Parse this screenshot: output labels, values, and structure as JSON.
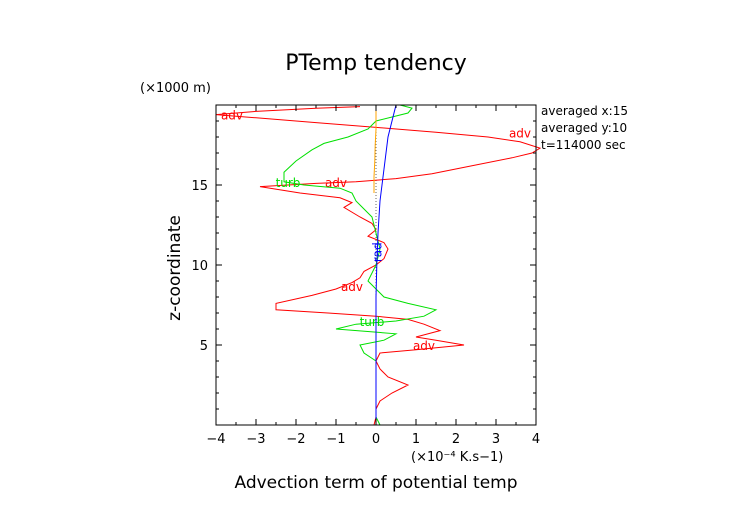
{
  "chart_data": {
    "type": "line",
    "title": "PTemp tendency",
    "xlabel": "Advection term of potential temp",
    "ylabel": "z-coordinate",
    "y_unit": "(×1000 m)",
    "x_unit": "(×10⁻⁴ K.s−1)",
    "xlim": [
      -4,
      4
    ],
    "ylim": [
      0,
      20
    ],
    "x_ticks": [
      -4,
      -3,
      -2,
      -1,
      0,
      1,
      2,
      3,
      4
    ],
    "y_ticks": [
      5,
      10,
      15
    ],
    "grid": false,
    "info_text": [
      "averaged  x:15",
      "averaged  y:10",
      "t=114000 sec"
    ],
    "series": [
      {
        "name": "adv",
        "color": "#ff0000",
        "labels": [
          [
            -3.6,
            19.3
          ],
          [
            3.6,
            18.2
          ],
          [
            -1.0,
            15.1
          ],
          [
            -0.6,
            8.6
          ],
          [
            1.2,
            4.9
          ]
        ],
        "points": [
          [
            -0.05,
            0.0
          ],
          [
            0.0,
            0.5
          ],
          [
            0.0,
            1.0
          ],
          [
            0.1,
            1.5
          ],
          [
            0.4,
            2.0
          ],
          [
            0.8,
            2.5
          ],
          [
            0.3,
            3.0
          ],
          [
            0.1,
            3.5
          ],
          [
            0.0,
            4.0
          ],
          [
            0.1,
            4.5
          ],
          [
            1.0,
            4.7
          ],
          [
            2.2,
            5.0
          ],
          [
            1.5,
            5.3
          ],
          [
            1.0,
            5.5
          ],
          [
            1.6,
            5.9
          ],
          [
            1.2,
            6.3
          ],
          [
            0.8,
            6.6
          ],
          [
            0.0,
            6.8
          ],
          [
            -1.2,
            7.0
          ],
          [
            -2.5,
            7.2
          ],
          [
            -2.5,
            7.6
          ],
          [
            -1.6,
            8.1
          ],
          [
            -1.0,
            8.5
          ],
          [
            -0.6,
            8.9
          ],
          [
            -0.4,
            9.2
          ],
          [
            -0.3,
            9.6
          ],
          [
            0.0,
            10.0
          ],
          [
            0.2,
            10.4
          ],
          [
            0.3,
            11.0
          ],
          [
            0.2,
            11.4
          ],
          [
            -0.2,
            11.8
          ],
          [
            0.0,
            12.2
          ],
          [
            -0.1,
            12.6
          ],
          [
            -0.4,
            13.0
          ],
          [
            -0.8,
            13.6
          ],
          [
            -0.6,
            13.9
          ],
          [
            -0.9,
            14.2
          ],
          [
            -1.9,
            14.5
          ],
          [
            -2.9,
            14.9
          ],
          [
            -1.5,
            15.1
          ],
          [
            -0.5,
            15.2
          ],
          [
            0.5,
            15.4
          ],
          [
            1.4,
            15.7
          ],
          [
            2.4,
            16.2
          ],
          [
            3.4,
            16.7
          ],
          [
            3.9,
            17.0
          ],
          [
            4.1,
            17.3
          ],
          [
            3.6,
            17.7
          ],
          [
            2.8,
            18.0
          ],
          [
            1.5,
            18.3
          ],
          [
            0.0,
            18.6
          ],
          [
            -1.5,
            18.9
          ],
          [
            -3.0,
            19.2
          ],
          [
            -4.0,
            19.4
          ],
          [
            -3.0,
            19.6
          ],
          [
            -1.5,
            19.8
          ],
          [
            -0.4,
            19.9
          ]
        ]
      },
      {
        "name": "turb",
        "color": "#00e000",
        "labels": [
          [
            -2.2,
            15.1
          ],
          [
            -0.1,
            6.4
          ]
        ],
        "points": [
          [
            0.1,
            0.0
          ],
          [
            0.0,
            0.5
          ],
          [
            0.0,
            1.0
          ],
          [
            0.0,
            2.0
          ],
          [
            0.0,
            3.0
          ],
          [
            0.0,
            4.0
          ],
          [
            -0.3,
            4.5
          ],
          [
            -0.4,
            5.0
          ],
          [
            0.2,
            5.3
          ],
          [
            0.5,
            5.7
          ],
          [
            -1.0,
            6.0
          ],
          [
            -0.5,
            6.3
          ],
          [
            0.5,
            6.5
          ],
          [
            1.2,
            6.8
          ],
          [
            1.5,
            7.2
          ],
          [
            0.8,
            7.6
          ],
          [
            0.2,
            8.0
          ],
          [
            0.0,
            8.5
          ],
          [
            -0.2,
            9.0
          ],
          [
            -0.1,
            9.5
          ],
          [
            0.0,
            10.0
          ],
          [
            0.1,
            11.0
          ],
          [
            0.0,
            12.0
          ],
          [
            -0.1,
            13.0
          ],
          [
            -0.3,
            13.5
          ],
          [
            -0.5,
            14.0
          ],
          [
            -0.6,
            14.5
          ],
          [
            -0.9,
            14.8
          ],
          [
            -1.8,
            15.0
          ],
          [
            -2.3,
            15.2
          ],
          [
            -2.3,
            15.8
          ],
          [
            -2.0,
            16.5
          ],
          [
            -1.6,
            17.2
          ],
          [
            -1.3,
            17.6
          ],
          [
            -0.7,
            18.0
          ],
          [
            -0.2,
            18.5
          ],
          [
            0.0,
            19.0
          ],
          [
            0.8,
            19.5
          ],
          [
            0.9,
            19.8
          ],
          [
            0.6,
            20.0
          ]
        ]
      },
      {
        "name": "rad",
        "color": "#0000ff",
        "labels": [
          [
            0.05,
            10.8
          ]
        ],
        "points": [
          [
            0.0,
            0.0
          ],
          [
            0.0,
            2.0
          ],
          [
            0.0,
            4.0
          ],
          [
            0.0,
            6.0
          ],
          [
            0.0,
            8.0
          ],
          [
            0.02,
            10.0
          ],
          [
            0.05,
            12.0
          ],
          [
            0.1,
            14.0
          ],
          [
            0.2,
            16.0
          ],
          [
            0.3,
            18.0
          ],
          [
            0.5,
            20.0
          ]
        ]
      },
      {
        "name": "",
        "color": "#ffa500",
        "labels": [],
        "points": [
          [
            -0.05,
            14.5
          ],
          [
            -0.05,
            15.5
          ],
          [
            -0.03,
            16.5
          ],
          [
            -0.02,
            17.5
          ],
          [
            0.0,
            18.5
          ],
          [
            0.0,
            19.5
          ],
          [
            0.0,
            20.0
          ]
        ]
      }
    ]
  }
}
